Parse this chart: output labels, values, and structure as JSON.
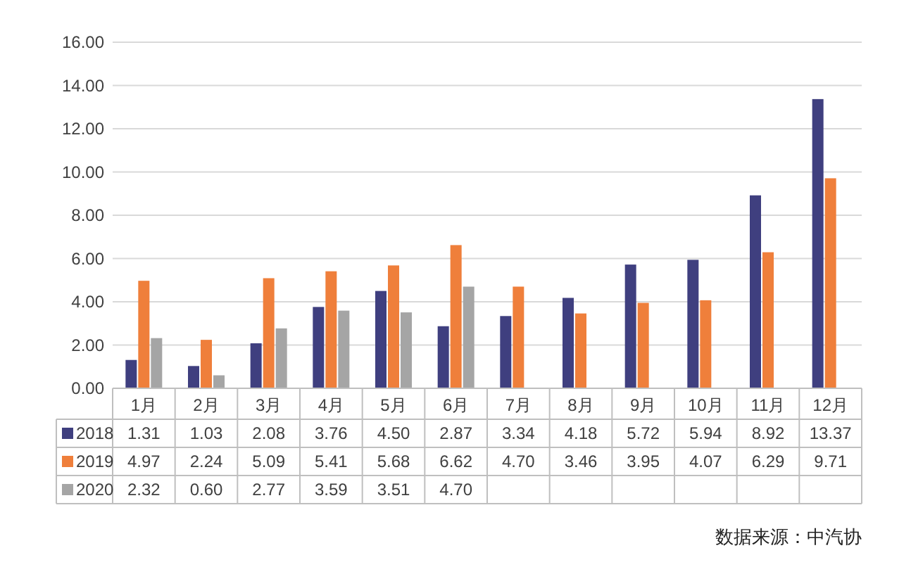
{
  "chart_data": {
    "type": "bar",
    "categories": [
      "1月",
      "2月",
      "3月",
      "4月",
      "5月",
      "6月",
      "7月",
      "8月",
      "9月",
      "10月",
      "11月",
      "12月"
    ],
    "series": [
      {
        "name": "2018",
        "color": "#3f3f7f",
        "values": [
          1.31,
          1.03,
          2.08,
          3.76,
          4.5,
          2.87,
          3.34,
          4.18,
          5.72,
          5.94,
          8.92,
          13.37
        ],
        "value_labels": [
          "1.31",
          "1.03",
          "2.08",
          "3.76",
          "4.50",
          "2.87",
          "3.34",
          "4.18",
          "5.72",
          "5.94",
          "8.92",
          "13.37"
        ]
      },
      {
        "name": "2019",
        "color": "#ef7f3b",
        "values": [
          4.97,
          2.24,
          5.09,
          5.41,
          5.68,
          6.62,
          4.7,
          3.46,
          3.95,
          4.07,
          6.29,
          9.71
        ],
        "value_labels": [
          "4.97",
          "2.24",
          "5.09",
          "5.41",
          "5.68",
          "6.62",
          "4.70",
          "3.46",
          "3.95",
          "4.07",
          "6.29",
          "9.71"
        ]
      },
      {
        "name": "2020",
        "color": "#a5a5a5",
        "values": [
          2.32,
          0.6,
          2.77,
          3.59,
          3.51,
          4.7,
          null,
          null,
          null,
          null,
          null,
          null
        ],
        "value_labels": [
          "2.32",
          "0.60",
          "2.77",
          "3.59",
          "3.51",
          "4.70",
          null,
          null,
          null,
          null,
          null,
          null
        ]
      }
    ],
    "ylim": [
      0,
      16
    ],
    "yticks": [
      {
        "value": 0,
        "label": "0.00"
      },
      {
        "value": 2,
        "label": "2.00"
      },
      {
        "value": 4,
        "label": "4.00"
      },
      {
        "value": 6,
        "label": "6.00"
      },
      {
        "value": 8,
        "label": "8.00"
      },
      {
        "value": 10,
        "label": "10.00"
      },
      {
        "value": 12,
        "label": "12.00"
      },
      {
        "value": 14,
        "label": "14.00"
      },
      {
        "value": 16,
        "label": "16.00"
      }
    ],
    "grid": "y",
    "legend": "bottom",
    "annotations": [
      "数据来源：中汽协"
    ]
  }
}
